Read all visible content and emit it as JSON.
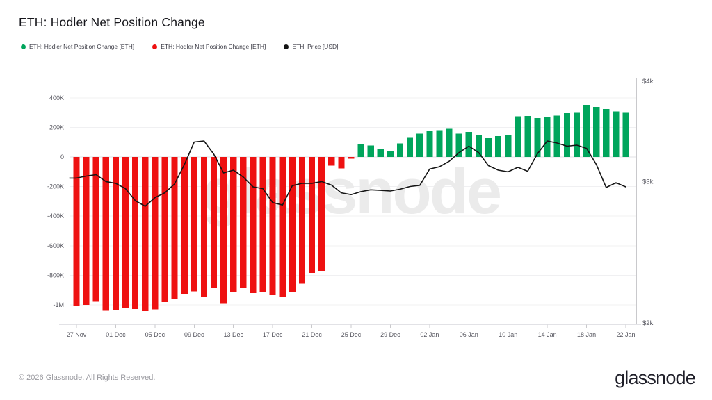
{
  "header": {
    "title": "ETH: Hodler Net Position Change"
  },
  "legend": [
    {
      "label": "ETH: Hodler Net Position Change [ETH]",
      "color": "#00a55c"
    },
    {
      "label": "ETH: Hodler Net Position Change [ETH]",
      "color": "#ee1111"
    },
    {
      "label": "ETH: Price [USD]",
      "color": "#141414"
    }
  ],
  "watermark": "glassnode",
  "footer": {
    "copyright": "© 2026 Glassnode. All Rights Reserved.",
    "brand": "glassnode"
  },
  "chart_data": {
    "type": "bar+line",
    "title": "ETH: Hodler Net Position Change",
    "legend_position": "top-left",
    "grid": true,
    "x": [
      "27 Nov",
      "28 Nov",
      "29 Nov",
      "30 Nov",
      "01 Dec",
      "02 Dec",
      "03 Dec",
      "04 Dec",
      "05 Dec",
      "06 Dec",
      "07 Dec",
      "08 Dec",
      "09 Dec",
      "10 Dec",
      "11 Dec",
      "12 Dec",
      "13 Dec",
      "14 Dec",
      "15 Dec",
      "16 Dec",
      "17 Dec",
      "18 Dec",
      "19 Dec",
      "20 Dec",
      "21 Dec",
      "22 Dec",
      "23 Dec",
      "24 Dec",
      "25 Dec",
      "26 Dec",
      "27 Dec",
      "28 Dec",
      "29 Dec",
      "30 Dec",
      "31 Dec",
      "01 Jan",
      "02 Jan",
      "03 Jan",
      "04 Jan",
      "05 Jan",
      "06 Jan",
      "07 Jan",
      "08 Jan",
      "09 Jan",
      "10 Jan",
      "11 Jan",
      "12 Jan",
      "13 Jan",
      "14 Jan",
      "15 Jan",
      "16 Jan",
      "17 Jan",
      "18 Jan",
      "19 Jan",
      "20 Jan",
      "21 Jan",
      "22 Jan"
    ],
    "series": [
      {
        "name": "ETH: Hodler Net Position Change [ETH]",
        "type": "bar",
        "unit": "thousand ETH",
        "axis": "left",
        "color_positive": "#00a55c",
        "color_negative": "#ee1111",
        "values": [
          -1010,
          -1000,
          -980,
          -1040,
          -1035,
          -1018,
          -1027,
          -1042,
          -1030,
          -982,
          -963,
          -925,
          -909,
          -944,
          -888,
          -993,
          -912,
          -886,
          -920,
          -916,
          -935,
          -946,
          -912,
          -856,
          -784,
          -770,
          -58,
          -78,
          -12,
          89,
          78,
          54,
          42,
          92,
          134,
          158,
          177,
          180,
          189,
          158,
          169,
          150,
          130,
          142,
          146,
          275,
          278,
          263,
          268,
          280,
          299,
          302,
          351,
          338,
          323,
          307,
          302
        ]
      },
      {
        "name": "ETH: Price [USD]",
        "type": "line",
        "unit": "USD",
        "axis": "right",
        "color": "#141414",
        "values": [
          3030,
          3048,
          3060,
          3000,
          2985,
          2940,
          2840,
          2795,
          2865,
          2905,
          2980,
          3150,
          3360,
          3370,
          3245,
          3075,
          3100,
          3040,
          2955,
          2940,
          2825,
          2805,
          2965,
          2985,
          2985,
          3000,
          2970,
          2905,
          2890,
          2915,
          2930,
          2925,
          2920,
          2935,
          2958,
          2968,
          3110,
          3130,
          3180,
          3260,
          3320,
          3260,
          3140,
          3100,
          3085,
          3125,
          3090,
          3250,
          3370,
          3350,
          3320,
          3330,
          3300,
          3150,
          2950,
          2990,
          2955
        ]
      }
    ],
    "left_axis": {
      "tick_labels": [
        "400K",
        "200K",
        "0",
        "-200K",
        "-400K",
        "-600K",
        "-800K",
        "-1M"
      ],
      "tick_values_k": [
        400,
        200,
        0,
        -200,
        -400,
        -600,
        -800,
        -1000
      ],
      "range_k": [
        -1100,
        520
      ],
      "scale": "linear"
    },
    "right_axis": {
      "tick_labels": [
        "$4k",
        "$3k",
        "$2k"
      ],
      "tick_values": [
        4000,
        3000,
        2000
      ],
      "range": [
        2000,
        4000
      ],
      "scale": "log"
    },
    "x_ticks": {
      "day_indices": [
        0,
        4,
        8,
        12,
        16,
        20,
        24,
        28,
        32,
        36,
        40,
        44,
        48,
        52,
        56
      ],
      "labels": [
        "27 Nov",
        "01 Dec",
        "05 Dec",
        "09 Dec",
        "13 Dec",
        "17 Dec",
        "21 Dec",
        "25 Dec",
        "29 Dec",
        "02 Jan",
        "06 Jan",
        "10 Jan",
        "14 Jan",
        "18 Jan",
        "22 Jan"
      ]
    }
  }
}
